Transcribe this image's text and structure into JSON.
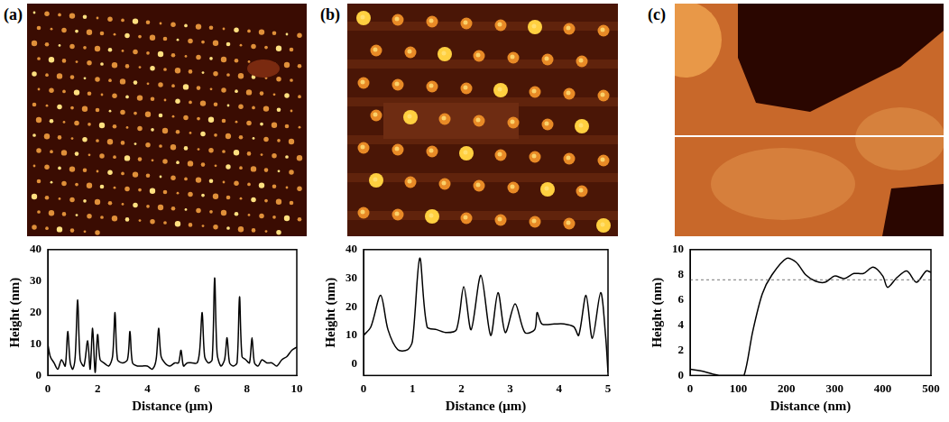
{
  "chart_data": [
    {
      "type": "line",
      "title": "(a)",
      "x_label": "Distance (μm)",
      "y_label": "Height (nm)",
      "color": "#000000",
      "grid": false,
      "x": [
        0,
        0.1,
        0.25,
        0.4,
        0.55,
        0.7,
        0.8,
        0.9,
        1.0,
        1.1,
        1.2,
        1.3,
        1.45,
        1.6,
        1.7,
        1.8,
        1.9,
        2.0,
        2.1,
        2.25,
        2.45,
        2.6,
        2.7,
        2.8,
        3.0,
        3.2,
        3.3,
        3.4,
        3.6,
        3.8,
        4.0,
        4.2,
        4.35,
        4.45,
        4.55,
        4.7,
        4.9,
        5.1,
        5.25,
        5.35,
        5.45,
        5.6,
        5.8,
        6.0,
        6.1,
        6.2,
        6.3,
        6.45,
        6.6,
        6.7,
        6.8,
        6.95,
        7.1,
        7.2,
        7.3,
        7.45,
        7.6,
        7.7,
        7.8,
        7.95,
        8.1,
        8.2,
        8.3,
        8.45,
        8.6,
        8.8,
        9.0,
        9.2,
        9.4,
        9.6,
        9.8,
        10
      ],
      "values": [
        10,
        6,
        4,
        2,
        5,
        3,
        14,
        4,
        2,
        6,
        24,
        5,
        3,
        11,
        2,
        15,
        1,
        13,
        5,
        4,
        3,
        6,
        20,
        5,
        4,
        5,
        14,
        4,
        3,
        3,
        3,
        2,
        5,
        15,
        6,
        4,
        3,
        4,
        4,
        8,
        3,
        4,
        4,
        4,
        8,
        20,
        6,
        4,
        5,
        31,
        7,
        3,
        5,
        12,
        4,
        3,
        4,
        25,
        6,
        5,
        4,
        12,
        4,
        3,
        5,
        4,
        4,
        3,
        5,
        6,
        8,
        9
      ],
      "xlim": [
        0,
        10
      ],
      "xticks": [
        0,
        2,
        4,
        6,
        8,
        10
      ],
      "ylim": [
        0,
        40
      ],
      "yticks": [
        0,
        10,
        20,
        30,
        40
      ]
    },
    {
      "type": "line",
      "title": "(b)",
      "x_label": "Distance (μm)",
      "y_label": "Height (nm)",
      "color": "#000000",
      "grid": false,
      "x": [
        0,
        0.15,
        0.35,
        0.5,
        0.7,
        0.9,
        1.0,
        1.15,
        1.3,
        1.5,
        1.7,
        1.9,
        2.05,
        2.2,
        2.4,
        2.6,
        2.75,
        2.9,
        3.1,
        3.3,
        3.5,
        3.55,
        3.65,
        3.9,
        4.1,
        4.3,
        4.4,
        4.55,
        4.68,
        4.85,
        4.95,
        5
      ],
      "values": [
        10,
        13,
        24,
        12,
        5,
        5,
        8,
        37,
        13,
        12,
        11,
        12,
        27,
        12,
        31,
        10,
        25,
        11,
        21,
        11,
        12,
        18,
        14,
        14,
        14,
        13,
        10,
        24,
        9,
        25,
        10,
        -3
      ],
      "xlim": [
        0,
        5
      ],
      "xticks": [
        0,
        1,
        2,
        3,
        4,
        5
      ],
      "ylim": [
        -4,
        40
      ],
      "yticks": [
        0,
        10,
        20,
        30,
        40
      ]
    },
    {
      "type": "line",
      "title": "(c)",
      "x_label": "Distance (nm)",
      "y_label": "Height (nm)",
      "color": "#000000",
      "grid": false,
      "x": [
        0,
        30,
        60,
        100,
        112,
        130,
        150,
        170,
        200,
        220,
        240,
        260,
        280,
        300,
        320,
        340,
        360,
        380,
        400,
        410,
        430,
        450,
        470,
        490,
        500
      ],
      "values": [
        0.5,
        0.3,
        0,
        0,
        0,
        3.5,
        6.5,
        8,
        9.3,
        9,
        8,
        7.5,
        7.4,
        7.9,
        7.7,
        8.1,
        8.1,
        8.6,
        7.9,
        7,
        7.8,
        8.3,
        7.4,
        8.3,
        8.2
      ],
      "reference_y": 7.6,
      "xlim": [
        0,
        500
      ],
      "xticks": [
        0,
        100,
        200,
        300,
        400,
        500
      ],
      "ylim": [
        0,
        10
      ],
      "yticks": [
        0,
        2,
        4,
        6,
        8,
        10
      ]
    }
  ]
}
